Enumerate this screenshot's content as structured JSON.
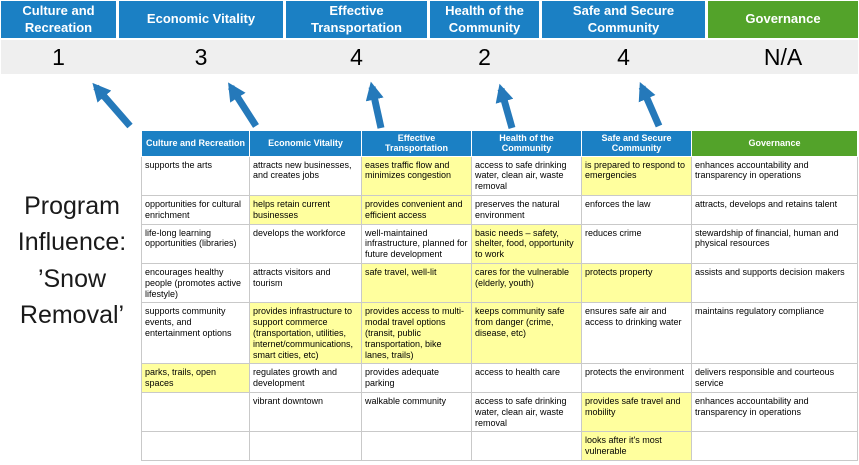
{
  "colors": {
    "header_blue": "#1b80c4",
    "header_green": "#53a32a",
    "highlight_yellow": "#ffff9e",
    "score_band_bg": "#efefef",
    "arrow_blue": "#2579ba"
  },
  "program": {
    "title": "Program Influence: ’Snow Removal’"
  },
  "summary": {
    "columns": [
      {
        "label": "Culture and Recreation",
        "score": "1",
        "color_key": "header_blue"
      },
      {
        "label": "Economic Vitality",
        "score": "3",
        "color_key": "header_blue"
      },
      {
        "label": "Effective Transportation",
        "score": "4",
        "color_key": "header_blue"
      },
      {
        "label": "Health of the Community",
        "score": "2",
        "color_key": "header_blue"
      },
      {
        "label": "Safe and Secure Community",
        "score": "4",
        "color_key": "header_blue"
      },
      {
        "label": "Governance",
        "score": "N/A",
        "color_key": "header_green"
      }
    ]
  },
  "table": {
    "headers": [
      {
        "label": "Culture and Recreation",
        "color_key": "header_blue"
      },
      {
        "label": "Economic Vitality",
        "color_key": "header_blue"
      },
      {
        "label": "Effective Transportation",
        "color_key": "header_blue"
      },
      {
        "label": "Health of the Community",
        "color_key": "header_blue"
      },
      {
        "label": "Safe and Secure Community",
        "color_key": "header_blue"
      },
      {
        "label": "Governance",
        "color_key": "header_green"
      }
    ],
    "rows": [
      {
        "cells": [
          {
            "text": "supports the arts",
            "highlight": false
          },
          {
            "text": "attracts new businesses, and creates jobs",
            "highlight": false
          },
          {
            "text": "eases traffic flow and minimizes congestion",
            "highlight": true
          },
          {
            "text": "access to safe drinking water, clean air, waste removal",
            "highlight": false
          },
          {
            "text": "is prepared to respond to emergencies",
            "highlight": true
          },
          {
            "text": "enhances accountability and transparency in operations",
            "highlight": false
          }
        ]
      },
      {
        "cells": [
          {
            "text": "opportunities for cultural enrichment",
            "highlight": false
          },
          {
            "text": "helps retain current businesses",
            "highlight": true
          },
          {
            "text": "provides convenient and efficient access",
            "highlight": true
          },
          {
            "text": "preserves the natural environment",
            "highlight": false
          },
          {
            "text": "enforces the law",
            "highlight": false
          },
          {
            "text": "attracts, develops and retains talent",
            "highlight": false
          }
        ]
      },
      {
        "cells": [
          {
            "text": "life-long learning opportunities (libraries)",
            "highlight": false
          },
          {
            "text": "develops the workforce",
            "highlight": false
          },
          {
            "text": "well-maintained infrastructure, planned for future development",
            "highlight": false
          },
          {
            "text": "basic needs – safety, shelter, food, opportunity to work",
            "highlight": true
          },
          {
            "text": "reduces crime",
            "highlight": false
          },
          {
            "text": "stewardship of financial, human and physical resources",
            "highlight": false
          }
        ]
      },
      {
        "cells": [
          {
            "text": "encourages healthy people (promotes active lifestyle)",
            "highlight": false
          },
          {
            "text": "attracts visitors and tourism",
            "highlight": false
          },
          {
            "text": "safe travel, well-lit",
            "highlight": true
          },
          {
            "text": "cares for the vulnerable (elderly, youth)",
            "highlight": true
          },
          {
            "text": "protects property",
            "highlight": true
          },
          {
            "text": "assists and supports decision makers",
            "highlight": false
          }
        ]
      },
      {
        "cells": [
          {
            "text": "supports community events, and entertainment options",
            "highlight": false
          },
          {
            "text": "provides infrastructure to support commerce (transportation, utilities, internet/communications, smart cities, etc)",
            "highlight": true
          },
          {
            "text": "provides access to multi-modal travel options (transit, public transportation, bike lanes, trails)",
            "highlight": true
          },
          {
            "text": "keeps community safe from danger (crime, disease, etc)",
            "highlight": true
          },
          {
            "text": "ensures safe air and access to drinking water",
            "highlight": false
          },
          {
            "text": "maintains regulatory compliance",
            "highlight": false
          }
        ]
      },
      {
        "cells": [
          {
            "text": "parks, trails, open spaces",
            "highlight": true
          },
          {
            "text": "regulates growth and development",
            "highlight": false
          },
          {
            "text": "provides adequate parking",
            "highlight": false
          },
          {
            "text": "access to health care",
            "highlight": false
          },
          {
            "text": "protects the environment",
            "highlight": false
          },
          {
            "text": "delivers responsible and courteous service",
            "highlight": false
          }
        ]
      },
      {
        "cells": [
          {
            "text": "",
            "highlight": false
          },
          {
            "text": "vibrant downtown",
            "highlight": false
          },
          {
            "text": "walkable community",
            "highlight": false
          },
          {
            "text": "access to safe drinking water, clean air, waste removal",
            "highlight": false
          },
          {
            "text": "provides safe travel and mobility",
            "highlight": true
          },
          {
            "text": "enhances accountability and transparency in operations",
            "highlight": false
          }
        ]
      },
      {
        "cells": [
          {
            "text": "",
            "highlight": false
          },
          {
            "text": "",
            "highlight": false
          },
          {
            "text": "",
            "highlight": false
          },
          {
            "text": "",
            "highlight": false
          },
          {
            "text": "looks after it's most vulnerable",
            "highlight": true
          },
          {
            "text": "",
            "highlight": false
          }
        ]
      }
    ]
  }
}
